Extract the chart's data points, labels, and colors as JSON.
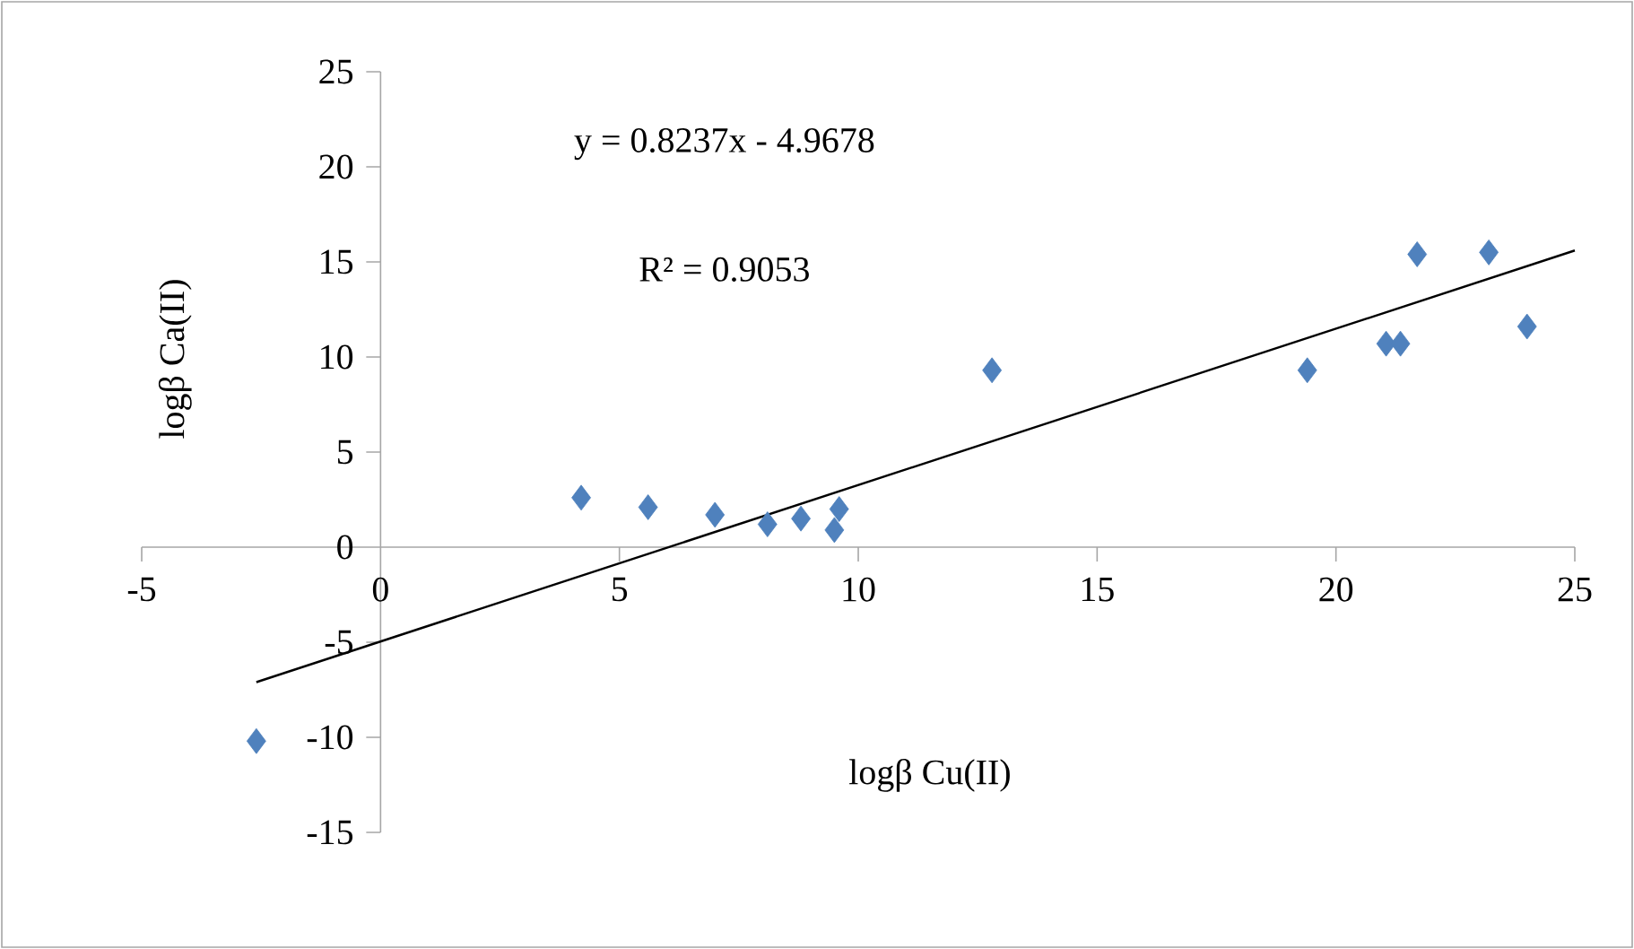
{
  "chart_data": {
    "type": "scatter",
    "xlabel": "logβ Cu(II)",
    "ylabel": "logβ Ca(II)",
    "annotations": [
      "y = 0.8237x - 4.9678",
      "R² = 0.9053"
    ],
    "series": [
      {
        "color": "#4f81bd",
        "marker": "diamond",
        "x": [
          -2.6,
          4.2,
          5.6,
          7.0,
          8.1,
          8.8,
          9.5,
          9.6,
          12.8,
          19.4,
          21.05,
          21.35,
          21.7,
          23.2,
          24.0
        ],
        "values": [
          -10.2,
          2.6,
          2.1,
          1.7,
          1.2,
          1.5,
          0.9,
          2.0,
          9.3,
          9.3,
          10.7,
          10.7,
          15.4,
          15.5,
          11.6
        ]
      },
      {
        "type": "line",
        "color": "#000000",
        "marker": "none",
        "x": [
          -2.6,
          25
        ],
        "values": [
          -7.1,
          15.6
        ]
      }
    ],
    "xlim": [
      -5,
      25
    ],
    "ylim": [
      -15,
      25
    ],
    "xticks": [
      -5,
      0,
      5,
      10,
      15,
      20,
      25
    ],
    "yticks": [
      -15,
      -10,
      -5,
      0,
      5,
      10,
      15,
      20,
      25
    ]
  }
}
